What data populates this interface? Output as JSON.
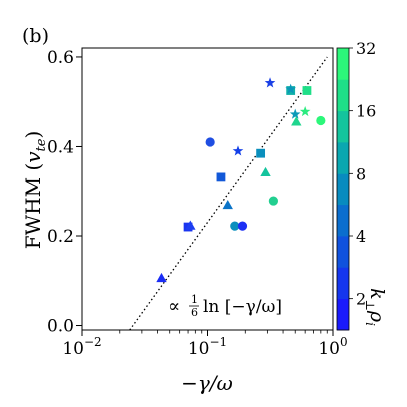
{
  "chart_data": {
    "type": "scatter",
    "panel_label": "(b)",
    "xlabel": "−γ/ω",
    "ylabel": "FWHM (v_{t e})",
    "ylabel_main": "FWHM (",
    "ylabel_v": "v",
    "ylabel_sub": "te",
    "ylabel_close": ")",
    "x_scale": "log",
    "xlim": [
      0.01,
      1.0
    ],
    "ylim": [
      -0.01,
      0.62
    ],
    "x_ticks": [
      {
        "value": 0.01,
        "base": "10",
        "exp": "−2"
      },
      {
        "value": 0.1,
        "base": "10",
        "exp": "−1"
      },
      {
        "value": 1.0,
        "base": "10",
        "exp": "0"
      }
    ],
    "y_ticks": [
      {
        "value": 0.0,
        "label": "0.0"
      },
      {
        "value": 0.2,
        "label": "0.2"
      },
      {
        "value": 0.4,
        "label": "0.4"
      },
      {
        "value": 0.6,
        "label": "0.6"
      }
    ],
    "fit_line": {
      "label_prefix": "∝",
      "label_num": "1",
      "label_den": "6",
      "label_body": "ln [−γ/ω]",
      "style": "dotted",
      "points": [
        [
          0.024,
          -0.01
        ],
        [
          0.9,
          0.6
        ]
      ]
    },
    "colorbar": {
      "label": "k⊥ρi",
      "label_k": "k",
      "label_perp": "⊥",
      "label_rho": "ρ",
      "label_i": "i",
      "bands": [
        "#1a1afc",
        "#1536ee",
        "#1052de",
        "#0b6ece",
        "#088bbf",
        "#0aa7b0",
        "#14c49d",
        "#1fdf88",
        "#2cf77a"
      ],
      "tick_labels": [
        "2",
        "4",
        "8",
        "16",
        "32"
      ],
      "tick_band_positions": [
        1,
        3,
        5,
        7,
        9
      ]
    },
    "points": [
      {
        "x": 0.043,
        "y": 0.105,
        "marker": "triangle",
        "color": "#1a2df5"
      },
      {
        "x": 0.07,
        "y": 0.22,
        "marker": "square",
        "color": "#1a35f0"
      },
      {
        "x": 0.073,
        "y": 0.222,
        "marker": "triangle",
        "color": "#1d3ef2"
      },
      {
        "x": 0.105,
        "y": 0.41,
        "marker": "circle",
        "color": "#1f4ee2"
      },
      {
        "x": 0.128,
        "y": 0.332,
        "marker": "square",
        "color": "#1258d8"
      },
      {
        "x": 0.145,
        "y": 0.268,
        "marker": "triangle",
        "color": "#0b74c8"
      },
      {
        "x": 0.165,
        "y": 0.222,
        "marker": "circle",
        "color": "#0a8fbd"
      },
      {
        "x": 0.175,
        "y": 0.39,
        "marker": "star",
        "color": "#1440e8"
      },
      {
        "x": 0.19,
        "y": 0.222,
        "marker": "circle",
        "color": "#1c2ff4"
      },
      {
        "x": 0.265,
        "y": 0.385,
        "marker": "square",
        "color": "#0a8fbd"
      },
      {
        "x": 0.29,
        "y": 0.342,
        "marker": "triangle",
        "color": "#14c49d"
      },
      {
        "x": 0.315,
        "y": 0.542,
        "marker": "star",
        "color": "#1a40e6"
      },
      {
        "x": 0.335,
        "y": 0.278,
        "marker": "circle",
        "color": "#22cf90"
      },
      {
        "x": 0.46,
        "y": 0.525,
        "marker": "square",
        "color": "#10b1a8"
      },
      {
        "x": 0.46,
        "y": 0.528,
        "marker": "star",
        "color": "#0a96b8"
      },
      {
        "x": 0.5,
        "y": 0.472,
        "marker": "star",
        "color": "#0c9ab8"
      },
      {
        "x": 0.51,
        "y": 0.455,
        "marker": "triangle",
        "color": "#1fd58e"
      },
      {
        "x": 0.6,
        "y": 0.478,
        "marker": "star",
        "color": "#2ceb80"
      },
      {
        "x": 0.62,
        "y": 0.525,
        "marker": "square",
        "color": "#1fdf88"
      },
      {
        "x": 0.8,
        "y": 0.458,
        "marker": "circle",
        "color": "#2cf77a"
      }
    ]
  }
}
